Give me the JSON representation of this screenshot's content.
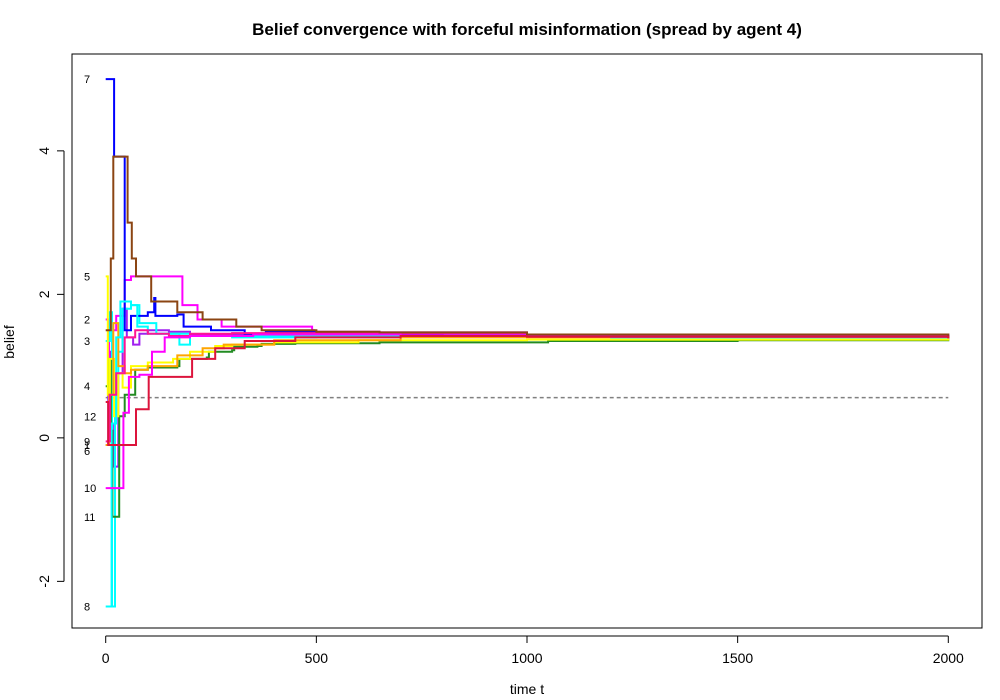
{
  "chart_data": {
    "type": "line",
    "title": "Belief convergence with forceful misinformation (spread by agent 4)",
    "xlabel": "time t",
    "ylabel": "belief",
    "xlim": [
      -80,
      2080
    ],
    "ylim": [
      -2.65,
      5.35
    ],
    "xticks": [
      0,
      500,
      1000,
      1500,
      2000
    ],
    "yticks": [
      -2,
      0,
      2,
      4
    ],
    "grid": false,
    "legend": "none",
    "reference_line": {
      "y": 0.56,
      "x": [
        0,
        2000
      ],
      "style": "dashed",
      "color": "#808080"
    },
    "series": [
      {
        "name": "1",
        "color": "#A020F0",
        "points": [
          [
            0,
            -0.1
          ],
          [
            6,
            1.2
          ],
          [
            12,
            0.2
          ],
          [
            20,
            -0.4
          ],
          [
            30,
            0.9
          ],
          [
            40,
            1.8
          ],
          [
            50,
            1.4
          ],
          [
            65,
            1.3
          ],
          [
            80,
            1.45
          ],
          [
            100,
            1.5
          ],
          [
            150,
            1.48
          ],
          [
            200,
            1.44
          ],
          [
            260,
            1.44
          ],
          [
            400,
            1.44
          ],
          [
            700,
            1.43
          ],
          [
            1200,
            1.4
          ],
          [
            2000,
            1.39
          ]
        ]
      },
      {
        "name": "2",
        "color": "#FF00FF",
        "points": [
          [
            0,
            1.65
          ],
          [
            8,
            1.0
          ],
          [
            15,
            1.5
          ],
          [
            25,
            1.7
          ],
          [
            45,
            2.2
          ],
          [
            60,
            2.25
          ],
          [
            100,
            2.25
          ],
          [
            180,
            2.25
          ],
          [
            182,
            1.85
          ],
          [
            215,
            1.85
          ],
          [
            218,
            1.65
          ],
          [
            270,
            1.65
          ],
          [
            275,
            1.55
          ],
          [
            490,
            1.5
          ],
          [
            495,
            1.48
          ],
          [
            650,
            1.47
          ],
          [
            1000,
            1.44
          ],
          [
            2000,
            1.39
          ]
        ]
      },
      {
        "name": "3",
        "color": "#00FFFF",
        "points": [
          [
            0,
            1.35
          ],
          [
            10,
            1.75
          ],
          [
            15,
            -2.35
          ],
          [
            20,
            -2.35
          ],
          [
            22,
            0.9
          ],
          [
            30,
            1.2
          ],
          [
            40,
            1.8
          ],
          [
            60,
            1.85
          ],
          [
            80,
            1.6
          ],
          [
            120,
            1.45
          ],
          [
            200,
            1.42
          ],
          [
            300,
            1.4
          ],
          [
            500,
            1.43
          ],
          [
            1000,
            1.42
          ],
          [
            2000,
            1.39
          ]
        ]
      },
      {
        "name": "4",
        "color": "#228B22",
        "points": [
          [
            0,
            0.72
          ],
          [
            6,
            1.1
          ],
          [
            12,
            0.1
          ],
          [
            16,
            -1.1
          ],
          [
            30,
            -1.1
          ],
          [
            32,
            0.3
          ],
          [
            45,
            0.6
          ],
          [
            70,
            0.95
          ],
          [
            100,
            0.98
          ],
          [
            170,
            1.0
          ],
          [
            175,
            1.1
          ],
          [
            240,
            1.12
          ],
          [
            245,
            1.2
          ],
          [
            300,
            1.22
          ],
          [
            305,
            1.27
          ],
          [
            360,
            1.28
          ],
          [
            370,
            1.31
          ],
          [
            450,
            1.32
          ],
          [
            650,
            1.33
          ],
          [
            900,
            1.33
          ],
          [
            1050,
            1.35
          ],
          [
            1500,
            1.36
          ],
          [
            2000,
            1.39
          ]
        ]
      },
      {
        "name": "5",
        "color": "#FFFF00",
        "points": [
          [
            0,
            2.25
          ],
          [
            5,
            0.6
          ],
          [
            10,
            1.1
          ],
          [
            20,
            0.3
          ],
          [
            30,
            0.9
          ],
          [
            40,
            0.7
          ],
          [
            60,
            1.0
          ],
          [
            100,
            1.05
          ],
          [
            160,
            1.1
          ],
          [
            200,
            1.2
          ],
          [
            260,
            1.28
          ],
          [
            300,
            1.3
          ],
          [
            400,
            1.33
          ],
          [
            600,
            1.36
          ],
          [
            1000,
            1.37
          ],
          [
            2000,
            1.39
          ]
        ]
      },
      {
        "name": "6",
        "color": "#FFA500",
        "points": [
          [
            0,
            -0.1
          ],
          [
            8,
            0.6
          ],
          [
            18,
            1.6
          ],
          [
            30,
            1.0
          ],
          [
            45,
            0.9
          ],
          [
            60,
            0.95
          ],
          [
            100,
            1.0
          ],
          [
            170,
            1.15
          ],
          [
            230,
            1.25
          ],
          [
            280,
            1.3
          ],
          [
            400,
            1.36
          ],
          [
            700,
            1.4
          ],
          [
            1000,
            1.4
          ],
          [
            2000,
            1.39
          ]
        ]
      },
      {
        "name": "7",
        "color": "#0000FF",
        "points": [
          [
            0,
            5.0
          ],
          [
            15,
            5.0
          ],
          [
            20,
            3.92
          ],
          [
            40,
            3.92
          ],
          [
            45,
            1.5
          ],
          [
            60,
            1.7
          ],
          [
            100,
            1.75
          ],
          [
            115,
            1.95
          ],
          [
            118,
            1.7
          ],
          [
            170,
            1.72
          ],
          [
            185,
            1.55
          ],
          [
            250,
            1.5
          ],
          [
            300,
            1.5
          ],
          [
            330,
            1.45
          ],
          [
            380,
            1.48
          ],
          [
            500,
            1.45
          ],
          [
            800,
            1.43
          ],
          [
            1300,
            1.42
          ],
          [
            2000,
            1.39
          ]
        ]
      },
      {
        "name": "8",
        "color": "#00FFFF",
        "points": [
          [
            0,
            -2.35
          ],
          [
            12,
            -2.35
          ],
          [
            14,
            0.2
          ],
          [
            25,
            1.4
          ],
          [
            35,
            1.9
          ],
          [
            60,
            1.85
          ],
          [
            75,
            1.55
          ],
          [
            100,
            1.45
          ],
          [
            150,
            1.45
          ],
          [
            175,
            1.3
          ],
          [
            200,
            1.42
          ],
          [
            400,
            1.42
          ],
          [
            700,
            1.42
          ],
          [
            1200,
            1.4
          ],
          [
            2000,
            1.39
          ]
        ]
      },
      {
        "name": "9",
        "color": "#FF1493",
        "points": [
          [
            0,
            -0.05
          ],
          [
            10,
            0.6
          ],
          [
            25,
            0.9
          ],
          [
            45,
            1.4
          ],
          [
            70,
            1.5
          ],
          [
            100,
            1.45
          ],
          [
            150,
            1.42
          ],
          [
            200,
            1.45
          ],
          [
            300,
            1.46
          ],
          [
            500,
            1.46
          ],
          [
            1000,
            1.42
          ],
          [
            2000,
            1.39
          ]
        ]
      },
      {
        "name": "10",
        "color": "#FF00FF",
        "points": [
          [
            0,
            -0.7
          ],
          [
            40,
            -0.7
          ],
          [
            42,
            0.35
          ],
          [
            55,
            0.85
          ],
          [
            80,
            0.88
          ],
          [
            110,
            1.2
          ],
          [
            140,
            1.4
          ],
          [
            200,
            1.42
          ],
          [
            350,
            1.44
          ],
          [
            700,
            1.43
          ],
          [
            1200,
            1.41
          ],
          [
            2000,
            1.39
          ]
        ]
      },
      {
        "name": "11",
        "color": "#8B4513",
        "points": [
          [
            0,
            1.5
          ],
          [
            12,
            2.5
          ],
          [
            18,
            3.92
          ],
          [
            48,
            3.92
          ],
          [
            52,
            3.0
          ],
          [
            62,
            2.5
          ],
          [
            72,
            2.25
          ],
          [
            105,
            2.25
          ],
          [
            108,
            1.9
          ],
          [
            170,
            1.75
          ],
          [
            230,
            1.65
          ],
          [
            310,
            1.55
          ],
          [
            370,
            1.5
          ],
          [
            500,
            1.48
          ],
          [
            650,
            1.47
          ],
          [
            1000,
            1.44
          ],
          [
            2000,
            1.39
          ]
        ]
      },
      {
        "name": "12",
        "color": "#DC143C",
        "points": [
          [
            0,
            0.5
          ],
          [
            6,
            -0.1
          ],
          [
            70,
            -0.1
          ],
          [
            72,
            0.4
          ],
          [
            100,
            0.4
          ],
          [
            102,
            0.85
          ],
          [
            200,
            0.85
          ],
          [
            205,
            1.1
          ],
          [
            260,
            1.25
          ],
          [
            330,
            1.35
          ],
          [
            450,
            1.4
          ],
          [
            700,
            1.42
          ],
          [
            1000,
            1.41
          ],
          [
            2000,
            1.39
          ]
        ]
      }
    ],
    "agent_labels": [
      {
        "text": "7",
        "y": 5.0
      },
      {
        "text": "5",
        "y": 2.25
      },
      {
        "text": "2",
        "y": 1.65
      },
      {
        "text": "3",
        "y": 1.35
      },
      {
        "text": "4",
        "y": 0.72
      },
      {
        "text": "12",
        "y": 0.3
      },
      {
        "text": "9",
        "y": -0.05
      },
      {
        "text": "1",
        "y": -0.1
      },
      {
        "text": "6",
        "y": -0.18
      },
      {
        "text": "10",
        "y": -0.7
      },
      {
        "text": "11",
        "y": -1.1
      },
      {
        "text": "8",
        "y": -2.35
      }
    ]
  }
}
